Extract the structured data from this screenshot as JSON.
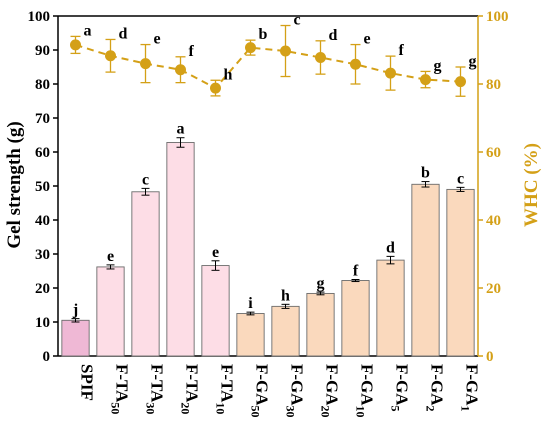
{
  "chart_data": {
    "type": "bar+line",
    "categories": [
      {
        "main": "SPIF",
        "sub": ""
      },
      {
        "main": "F-TA",
        "sub": "50"
      },
      {
        "main": "F-TA",
        "sub": "30"
      },
      {
        "main": "F-TA",
        "sub": "20"
      },
      {
        "main": "F-TA",
        "sub": "10"
      },
      {
        "main": "F-GA",
        "sub": "50"
      },
      {
        "main": "F-GA",
        "sub": "30"
      },
      {
        "main": "F-GA",
        "sub": "20"
      },
      {
        "main": "F-GA",
        "sub": "10"
      },
      {
        "main": "F-GA",
        "sub": "5"
      },
      {
        "main": "F-GA",
        "sub": "2"
      },
      {
        "main": "F-GA",
        "sub": "1"
      }
    ],
    "bars": {
      "values": [
        10.5,
        26.2,
        48.3,
        62.8,
        26.6,
        12.5,
        14.6,
        18.4,
        22.2,
        28.2,
        50.5,
        49.0
      ],
      "errors": [
        0.5,
        0.6,
        1.0,
        1.4,
        1.4,
        0.4,
        0.6,
        0.4,
        0.3,
        1.1,
        0.8,
        0.6
      ],
      "letters": [
        "j",
        "e",
        "c",
        "a",
        "e",
        "i",
        "h",
        "g",
        "f",
        "d",
        "b",
        "c"
      ],
      "colors": [
        "#efb8d5",
        "#fddde6",
        "#fddde6",
        "#fddde6",
        "#fddde6",
        "#fad9bd",
        "#fad9bd",
        "#fad9bd",
        "#fad9bd",
        "#fad9bd",
        "#fad9bd",
        "#fad9bd"
      ]
    },
    "line": {
      "values": [
        91.5,
        88.3,
        86.0,
        84.2,
        78.8,
        90.7,
        89.7,
        87.8,
        85.8,
        83.2,
        81.3,
        80.7
      ],
      "errors": [
        2.5,
        4.8,
        5.6,
        3.8,
        2.3,
        2.2,
        7.5,
        4.9,
        5.8,
        5.0,
        2.4,
        4.3
      ],
      "letters": [
        "a",
        "d",
        "e",
        "f",
        "h",
        "b",
        "c",
        "d",
        "e",
        "f",
        "g",
        "g"
      ],
      "color": "#d4a017"
    },
    "y_left": {
      "label": "Gel strength (g)",
      "min": 0,
      "max": 100,
      "ticks": [
        0,
        10,
        20,
        30,
        40,
        50,
        60,
        70,
        80,
        90,
        100
      ]
    },
    "y_right": {
      "label": "WHC (%)",
      "min": 0,
      "max": 100,
      "ticks": [
        0,
        20,
        40,
        60,
        80,
        100
      ],
      "color": "#d4a017"
    },
    "grid": false,
    "legend": "none"
  }
}
